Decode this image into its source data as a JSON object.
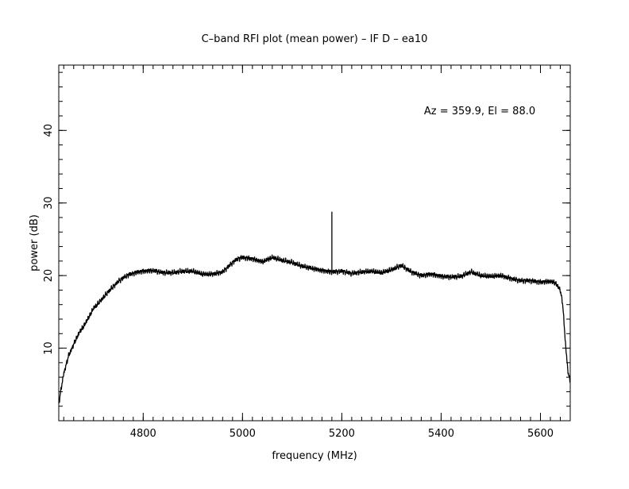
{
  "chart_data": {
    "type": "line",
    "title": "C–band RFI plot (mean power) – IF D – ea10",
    "xlabel": "frequency (MHz)",
    "ylabel": "power (dB)",
    "annotation": "Az = 359.9, El = 88.0",
    "xlim": [
      4630,
      5660
    ],
    "ylim": [
      0,
      49
    ],
    "x_ticks": [
      4800,
      5000,
      5200,
      5400,
      5600
    ],
    "x_tick_labels": [
      "4800",
      "5000",
      "5200",
      "5400",
      "5600"
    ],
    "y_ticks": [
      10,
      20,
      30,
      40
    ],
    "y_tick_labels": [
      "10",
      "20",
      "30",
      "40"
    ],
    "x_minor_step": 20,
    "y_minor_step": 2,
    "grid": false,
    "line_color": "#000000",
    "spike": {
      "x": 5180,
      "y": 28.8
    },
    "series": [
      {
        "x": [
          4630,
          4635,
          4640,
          4650,
          4660,
          4670,
          4680,
          4690,
          4700,
          4710,
          4720,
          4730,
          4740,
          4750,
          4760,
          4770,
          4780,
          4790,
          4800,
          4820,
          4840,
          4860,
          4880,
          4900,
          4920,
          4940,
          4960,
          4980,
          4990,
          5000,
          5020,
          5040,
          5060,
          5080,
          5100,
          5120,
          5140,
          5160,
          5180,
          5200,
          5220,
          5240,
          5260,
          5280,
          5300,
          5320,
          5340,
          5360,
          5380,
          5400,
          5420,
          5440,
          5460,
          5480,
          5500,
          5520,
          5540,
          5560,
          5580,
          5600,
          5620,
          5630,
          5640,
          5645,
          5650,
          5655,
          5660
        ],
        "values": [
          2.3,
          4.5,
          6.5,
          9.0,
          10.5,
          12.0,
          13.0,
          14.2,
          15.5,
          16.2,
          17.0,
          17.8,
          18.5,
          19.2,
          19.7,
          20.1,
          20.3,
          20.5,
          20.6,
          20.7,
          20.4,
          20.4,
          20.6,
          20.6,
          20.2,
          20.2,
          20.5,
          21.8,
          22.3,
          22.5,
          22.3,
          21.9,
          22.5,
          22.1,
          21.8,
          21.3,
          21.0,
          20.7,
          20.5,
          20.6,
          20.3,
          20.5,
          20.6,
          20.4,
          20.8,
          21.4,
          20.5,
          20.0,
          20.2,
          19.9,
          19.8,
          19.9,
          20.5,
          20.0,
          19.9,
          20.0,
          19.6,
          19.3,
          19.3,
          19.1,
          19.2,
          19.0,
          18.0,
          16.0,
          11.0,
          7.0,
          5.3
        ]
      }
    ]
  }
}
